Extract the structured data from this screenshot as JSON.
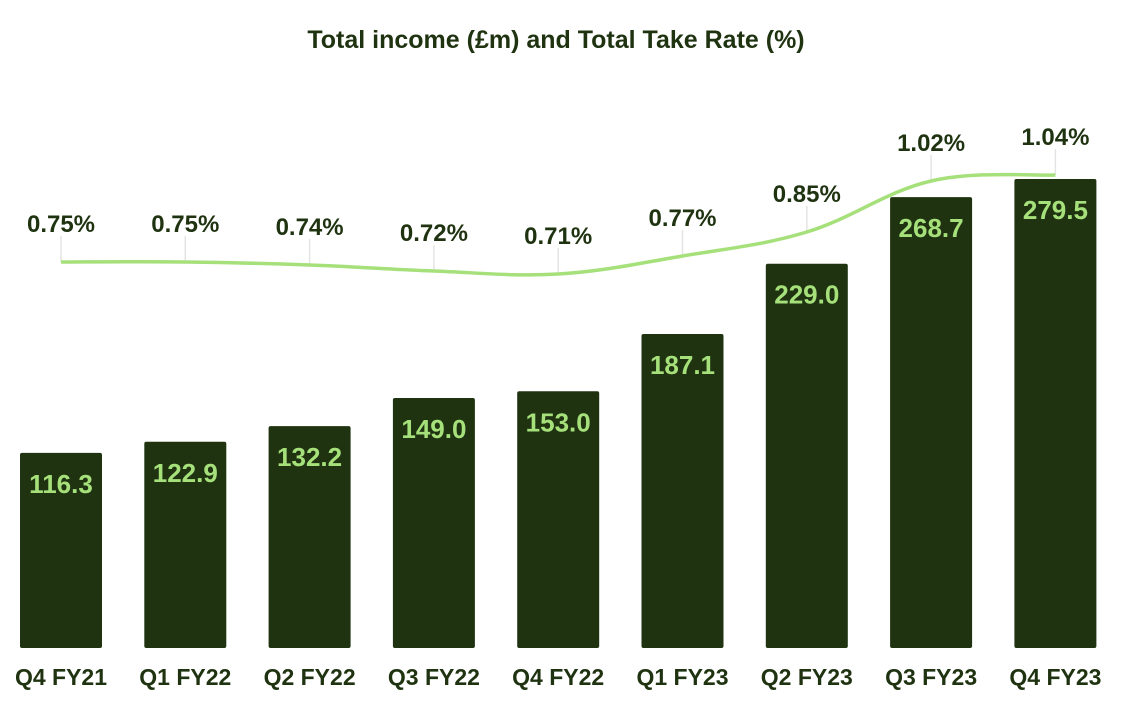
{
  "chart_data": {
    "type": "bar",
    "title": "Total income (£m) and Total Take Rate (%)",
    "categories": [
      "Q4 FY21",
      "Q1 FY22",
      "Q2 FY22",
      "Q3 FY22",
      "Q4 FY22",
      "Q1 FY23",
      "Q2 FY23",
      "Q3 FY23",
      "Q4 FY23"
    ],
    "series": [
      {
        "type": "bar",
        "values": [
          116.3,
          122.9,
          132.2,
          149.0,
          153.0,
          187.1,
          229.0,
          268.7,
          279.5
        ],
        "labels": [
          "116.3",
          "122.9",
          "132.2",
          "149.0",
          "153.0",
          "187.1",
          "229.0",
          "268.7",
          "279.5"
        ]
      },
      {
        "type": "line",
        "values": [
          0.75,
          0.75,
          0.74,
          0.72,
          0.71,
          0.77,
          0.85,
          1.02,
          1.04
        ],
        "labels": [
          "0.75%",
          "0.75%",
          "0.74%",
          "0.72%",
          "0.71%",
          "0.77%",
          "0.85%",
          "1.02%",
          "1.04%"
        ]
      }
    ],
    "colors": {
      "bar": "#1f3311",
      "bar_label": "#a6e07a",
      "line": "#a6e07a",
      "text": "#1f3311"
    },
    "grid": false,
    "legend": "none"
  }
}
